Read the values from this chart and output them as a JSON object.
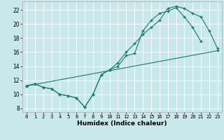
{
  "xlabel": "Humidex (Indice chaleur)",
  "background_color": "#c8e8ec",
  "line_color": "#1a7a6e",
  "grid_color": "#ffffff",
  "xlim": [
    -0.5,
    23.5
  ],
  "ylim": [
    7.5,
    23.2
  ],
  "yticks": [
    8,
    10,
    12,
    14,
    16,
    18,
    20,
    22
  ],
  "xticks": [
    0,
    1,
    2,
    3,
    4,
    5,
    6,
    7,
    8,
    9,
    10,
    11,
    12,
    13,
    14,
    15,
    16,
    17,
    18,
    19,
    20,
    21,
    22,
    23
  ],
  "line1_x": [
    0,
    1,
    2,
    3,
    4,
    5,
    6,
    7,
    8,
    9,
    10,
    11,
    12,
    13,
    14,
    15,
    16,
    17,
    18,
    19,
    20,
    21
  ],
  "line1_y": [
    11.2,
    11.5,
    11.0,
    10.8,
    10.0,
    9.8,
    9.5,
    8.2,
    10.0,
    12.8,
    13.5,
    14.0,
    15.5,
    15.8,
    19.0,
    20.5,
    21.5,
    21.8,
    22.3,
    21.0,
    19.5,
    17.5
  ],
  "line2_x": [
    0,
    1,
    2,
    3,
    4,
    5,
    6,
    7,
    8,
    9,
    10,
    11,
    12,
    13,
    14,
    15,
    16,
    17,
    18,
    19,
    20,
    21,
    22,
    23
  ],
  "line2_y": [
    11.2,
    11.5,
    11.0,
    10.8,
    10.0,
    9.8,
    9.5,
    8.2,
    10.0,
    12.8,
    13.5,
    14.5,
    16.0,
    17.2,
    18.5,
    19.5,
    20.5,
    22.2,
    22.5,
    22.2,
    21.5,
    21.0,
    19.0,
    16.5
  ],
  "line3_x": [
    0,
    23
  ],
  "line3_y": [
    11.2,
    16.2
  ]
}
